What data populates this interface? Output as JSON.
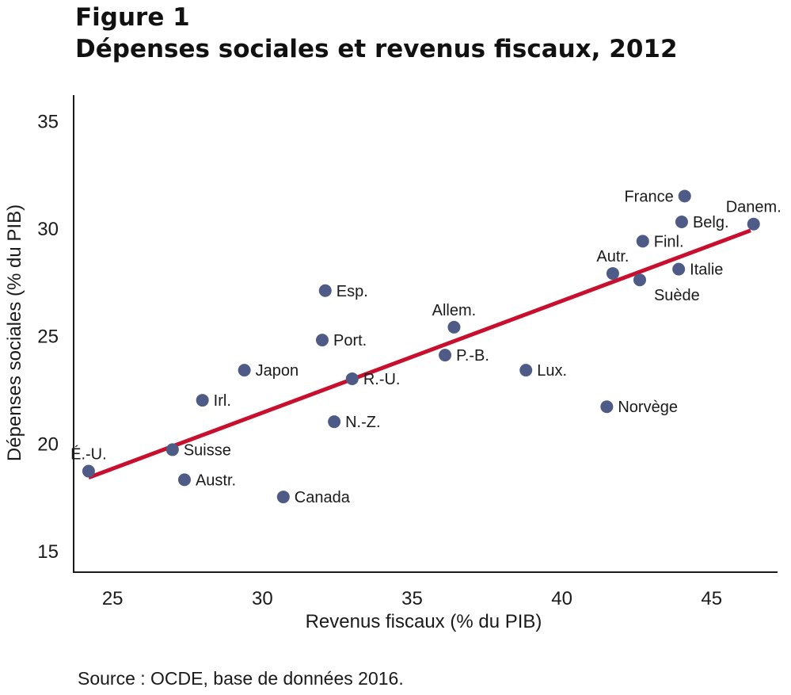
{
  "header": {
    "figure_label": "Figure 1",
    "title": "Dépenses sociales et revenus fiscaux, 2012"
  },
  "source": "Source : OCDE, base de données 2016.",
  "colors": {
    "point": "#4d5b86",
    "trendline": "#c8102e",
    "axis": "#1a1a1a"
  },
  "chart_data": {
    "type": "scatter",
    "title": "Dépenses sociales et revenus fiscaux, 2012",
    "xlabel": "Revenus fiscaux (% du PIB)",
    "ylabel": "Dépenses sociales (% du PIB)",
    "xlim": [
      23.7,
      47.2
    ],
    "ylim": [
      14,
      36.2
    ],
    "xticks": [
      25,
      30,
      35,
      40,
      45
    ],
    "yticks": [
      15,
      20,
      25,
      30,
      35
    ],
    "grid": false,
    "points": [
      {
        "label": "É.-U.",
        "x": 24.2,
        "y": 18.7,
        "label_pos": "above"
      },
      {
        "label": "Suisse",
        "x": 27.0,
        "y": 19.7,
        "label_pos": "right"
      },
      {
        "label": "Austr.",
        "x": 27.4,
        "y": 18.3,
        "label_pos": "right"
      },
      {
        "label": "Irl.",
        "x": 28.0,
        "y": 22.0,
        "label_pos": "right"
      },
      {
        "label": "Japon",
        "x": 29.4,
        "y": 23.4,
        "label_pos": "right"
      },
      {
        "label": "Canada",
        "x": 30.7,
        "y": 17.5,
        "label_pos": "right"
      },
      {
        "label": "Esp.",
        "x": 32.1,
        "y": 27.1,
        "label_pos": "right"
      },
      {
        "label": "Port.",
        "x": 32.0,
        "y": 24.8,
        "label_pos": "right"
      },
      {
        "label": "N.-Z.",
        "x": 32.4,
        "y": 21.0,
        "label_pos": "right"
      },
      {
        "label": "R.-U.",
        "x": 33.0,
        "y": 23.0,
        "label_pos": "right"
      },
      {
        "label": "Allem.",
        "x": 36.4,
        "y": 25.4,
        "label_pos": "above"
      },
      {
        "label": "P.-B.",
        "x": 36.1,
        "y": 24.1,
        "label_pos": "right"
      },
      {
        "label": "Lux.",
        "x": 38.8,
        "y": 23.4,
        "label_pos": "right"
      },
      {
        "label": "Norvège",
        "x": 41.5,
        "y": 21.7,
        "label_pos": "right"
      },
      {
        "label": "Autr.",
        "x": 41.7,
        "y": 27.9,
        "label_pos": "above"
      },
      {
        "label": "Suède",
        "x": 42.6,
        "y": 27.6,
        "label_pos": "below-right"
      },
      {
        "label": "Finl.",
        "x": 42.7,
        "y": 29.4,
        "label_pos": "right"
      },
      {
        "label": "Italie",
        "x": 43.9,
        "y": 28.1,
        "label_pos": "right"
      },
      {
        "label": "France",
        "x": 44.1,
        "y": 31.5,
        "label_pos": "left"
      },
      {
        "label": "Belg.",
        "x": 44.0,
        "y": 30.3,
        "label_pos": "right"
      },
      {
        "label": "Danem.",
        "x": 46.4,
        "y": 30.2,
        "label_pos": "above"
      }
    ],
    "trendline": {
      "x": [
        24.2,
        46.3
      ],
      "y": [
        18.4,
        29.9
      ]
    }
  }
}
